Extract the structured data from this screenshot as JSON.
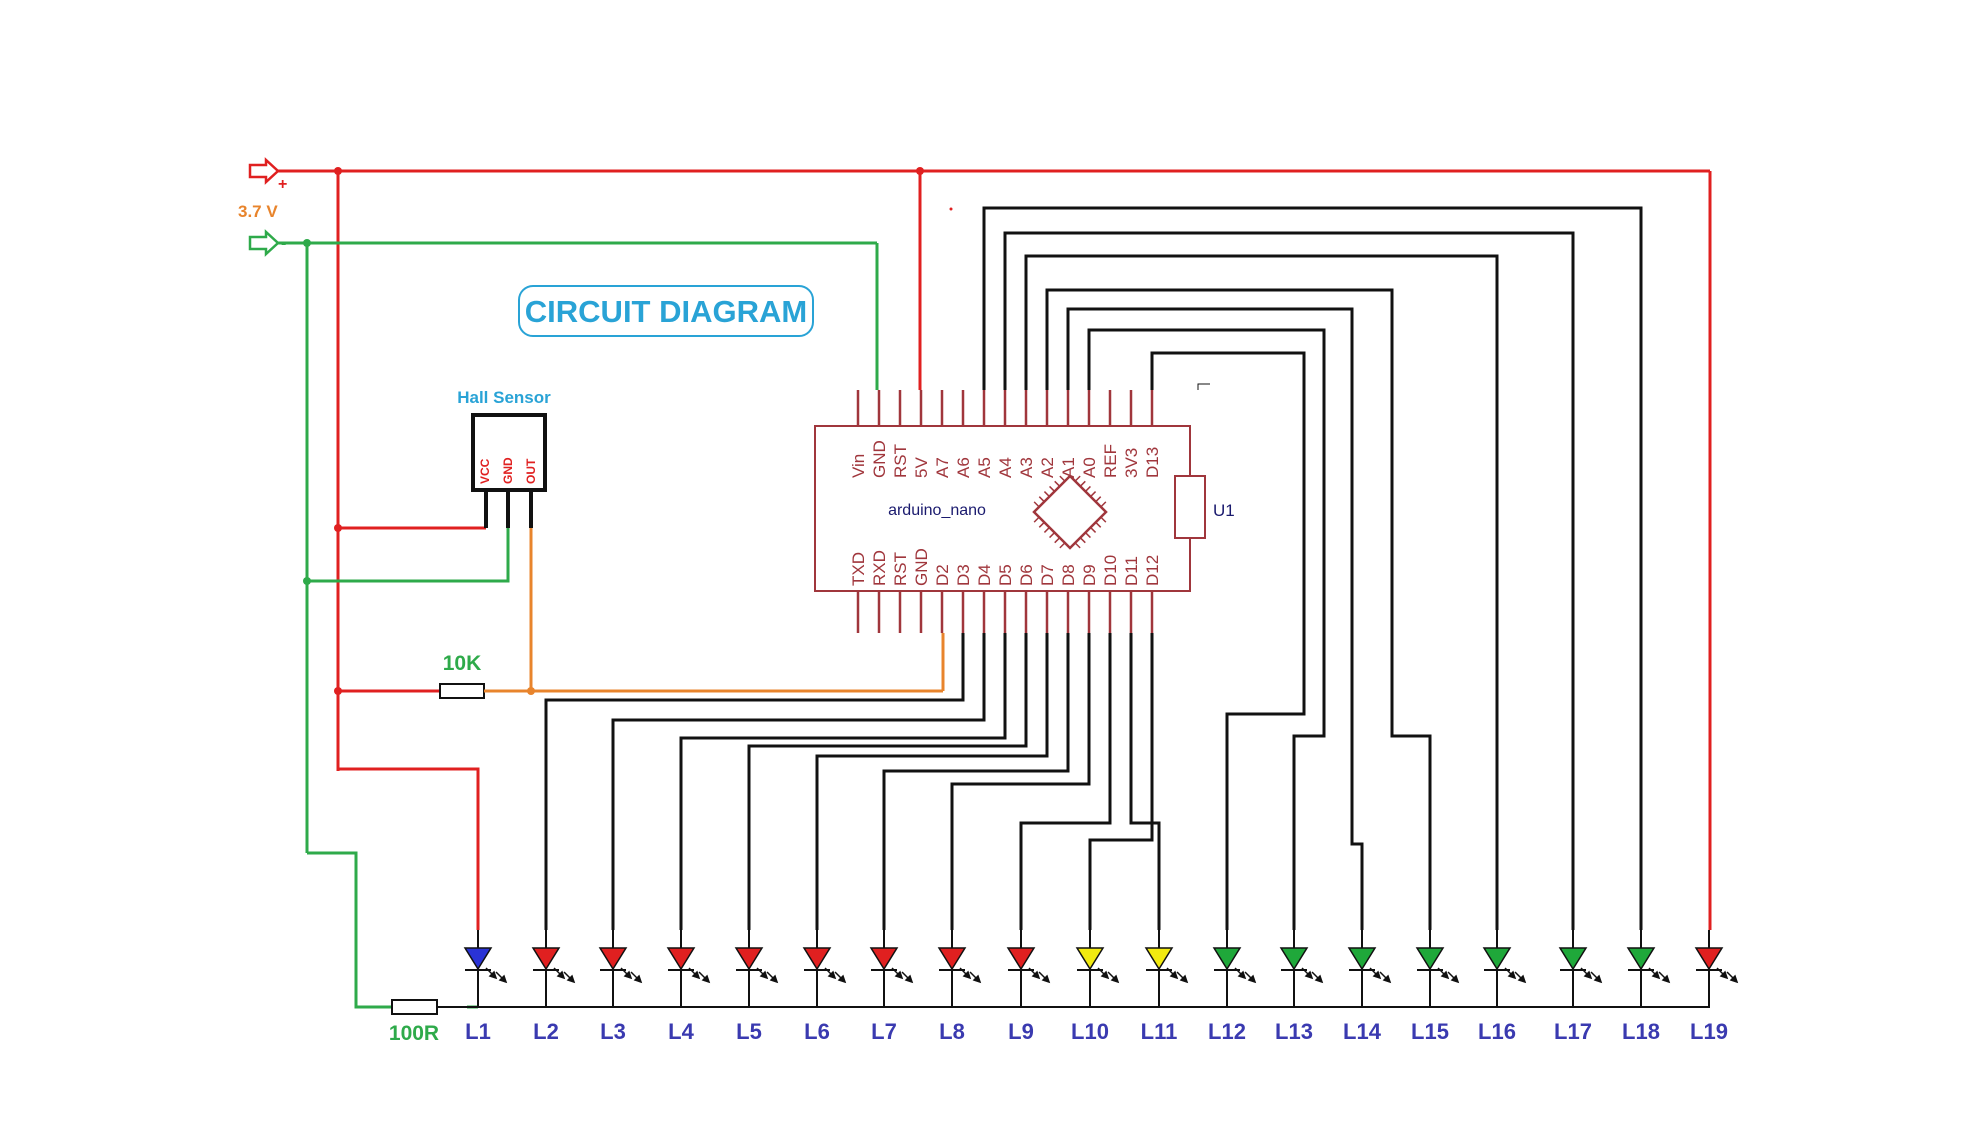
{
  "title": "CIRCUIT DIAGRAM",
  "supply": {
    "plus": "+",
    "minus": "-",
    "voltage": "3.7 V"
  },
  "sensor": {
    "label": "Hall Sensor",
    "pins": [
      "VCC",
      "GND",
      "OUT"
    ]
  },
  "board": {
    "name": "arduino_nano",
    "ref": "U1",
    "top_pins": [
      "Vin",
      "GND",
      "RST",
      "5V",
      "A7",
      "A6",
      "A5",
      "A4",
      "A3",
      "A2",
      "A1",
      "A0",
      "REF",
      "3V3",
      "D13"
    ],
    "bottom_pins": [
      "TXD",
      "RXD",
      "RST",
      "GND",
      "D2",
      "D3",
      "D4",
      "D5",
      "D6",
      "D7",
      "D8",
      "D9",
      "D10",
      "D11",
      "D12"
    ]
  },
  "resistors": {
    "pullup": "10K",
    "led": "100R"
  },
  "leds": [
    {
      "label": "L1",
      "color": "#2a33d6"
    },
    {
      "label": "L2",
      "color": "#e02020"
    },
    {
      "label": "L3",
      "color": "#e02020"
    },
    {
      "label": "L4",
      "color": "#e02020"
    },
    {
      "label": "L5",
      "color": "#e02020"
    },
    {
      "label": "L6",
      "color": "#e02020"
    },
    {
      "label": "L7",
      "color": "#e02020"
    },
    {
      "label": "L8",
      "color": "#e02020"
    },
    {
      "label": "L9",
      "color": "#e02020"
    },
    {
      "label": "L10",
      "color": "#f2ea10"
    },
    {
      "label": "L11",
      "color": "#f2ea10"
    },
    {
      "label": "L12",
      "color": "#1fa83a"
    },
    {
      "label": "L13",
      "color": "#1fa83a"
    },
    {
      "label": "L14",
      "color": "#1fa83a"
    },
    {
      "label": "L15",
      "color": "#1fa83a"
    },
    {
      "label": "L16",
      "color": "#1fa83a"
    },
    {
      "label": "L17",
      "color": "#1fa83a"
    },
    {
      "label": "L18",
      "color": "#1fa83a"
    },
    {
      "label": "L19",
      "color": "#e02020"
    }
  ],
  "colors": {
    "power": "#e02020",
    "ground": "#2eaa4a",
    "signal": "#111111",
    "sensor_out": "#e8842c",
    "chip": "#a0363c",
    "led_label": "#3a3ab0",
    "title": "#29a3d6",
    "voltage_label": "#e8842c",
    "resistor_label": "#2eaa4a"
  }
}
